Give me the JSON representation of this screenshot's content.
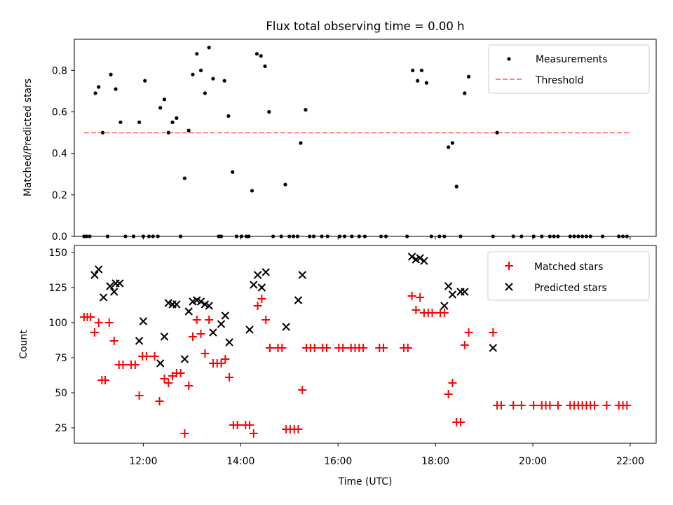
{
  "title": "Flux total observing time = 0.00 h",
  "colors": {
    "measurements": "#000000",
    "threshold": "#ff7f7f",
    "matched": "#ff0000",
    "predicted": "#000000"
  },
  "chart_data": [
    {
      "type": "scatter",
      "title": "Flux total observing time = 0.00 h",
      "xlabel": "",
      "ylabel": "Matched/Predicted stars",
      "xlim": [
        "10:35",
        "22:32"
      ],
      "ylim": [
        0,
        0.95
      ],
      "yticks": [
        0.0,
        0.2,
        0.4,
        0.6,
        0.8
      ],
      "ytick_labels": [
        "0.0",
        "0.2",
        "0.4",
        "0.6",
        "0.8"
      ],
      "xticks": [
        "12:00",
        "14:00",
        "16:00",
        "18:00",
        "20:00",
        "22:00"
      ],
      "xtick_labels_visible": false,
      "legend": {
        "position": "top-right",
        "entries": [
          "Measurements",
          "Threshold"
        ]
      },
      "grid": false,
      "series": [
        {
          "name": "Measurements",
          "kind": "scatter-dot",
          "points": [
            [
              "10:47",
              0.0
            ],
            [
              "10:50",
              0.0
            ],
            [
              "10:54",
              0.0
            ],
            [
              "11:01",
              0.69
            ],
            [
              "11:05",
              0.72
            ],
            [
              "11:10",
              0.5
            ],
            [
              "11:16",
              0.0
            ],
            [
              "11:20",
              0.78
            ],
            [
              "11:26",
              0.71
            ],
            [
              "11:32",
              0.55
            ],
            [
              "11:38",
              0.0
            ],
            [
              "11:48",
              0.0
            ],
            [
              "11:55",
              0.55
            ],
            [
              "12:00",
              0.0
            ],
            [
              "12:02",
              0.75
            ],
            [
              "12:07",
              0.0
            ],
            [
              "12:12",
              0.0
            ],
            [
              "12:18",
              0.0
            ],
            [
              "12:21",
              0.62
            ],
            [
              "12:26",
              0.66
            ],
            [
              "12:31",
              0.5
            ],
            [
              "12:36",
              0.55
            ],
            [
              "12:41",
              0.57
            ],
            [
              "12:46",
              0.0
            ],
            [
              "12:51",
              0.28
            ],
            [
              "12:56",
              0.51
            ],
            [
              "13:01",
              0.78
            ],
            [
              "13:06",
              0.88
            ],
            [
              "13:11",
              0.8
            ],
            [
              "13:16",
              0.69
            ],
            [
              "13:21",
              0.91
            ],
            [
              "13:26",
              0.76
            ],
            [
              "13:33",
              0.0
            ],
            [
              "13:36",
              0.0
            ],
            [
              "13:40",
              0.75
            ],
            [
              "13:45",
              0.58
            ],
            [
              "13:50",
              0.31
            ],
            [
              "13:55",
              0.0
            ],
            [
              "14:01",
              0.0
            ],
            [
              "14:07",
              0.0
            ],
            [
              "14:10",
              0.0
            ],
            [
              "14:14",
              0.22
            ],
            [
              "14:20",
              0.88
            ],
            [
              "14:25",
              0.87
            ],
            [
              "14:30",
              0.82
            ],
            [
              "14:35",
              0.6
            ],
            [
              "14:40",
              0.0
            ],
            [
              "14:50",
              0.0
            ],
            [
              "14:55",
              0.25
            ],
            [
              "15:00",
              0.0
            ],
            [
              "15:05",
              0.0
            ],
            [
              "15:10",
              0.0
            ],
            [
              "15:14",
              0.45
            ],
            [
              "15:20",
              0.61
            ],
            [
              "15:25",
              0.0
            ],
            [
              "15:30",
              0.0
            ],
            [
              "15:40",
              0.0
            ],
            [
              "15:47",
              0.0
            ],
            [
              "16:02",
              0.0
            ],
            [
              "16:08",
              0.0
            ],
            [
              "16:17",
              0.0
            ],
            [
              "16:26",
              0.0
            ],
            [
              "16:33",
              0.0
            ],
            [
              "16:53",
              0.0
            ],
            [
              "16:59",
              0.0
            ],
            [
              "17:25",
              0.0
            ],
            [
              "17:32",
              0.8
            ],
            [
              "17:38",
              0.75
            ],
            [
              "17:43",
              0.8
            ],
            [
              "17:49",
              0.74
            ],
            [
              "17:55",
              0.0
            ],
            [
              "18:05",
              0.0
            ],
            [
              "18:11",
              0.0
            ],
            [
              "18:16",
              0.43
            ],
            [
              "18:21",
              0.45
            ],
            [
              "18:26",
              0.24
            ],
            [
              "18:31",
              0.0
            ],
            [
              "18:36",
              0.69
            ],
            [
              "18:41",
              0.77
            ],
            [
              "19:11",
              0.0
            ],
            [
              "19:16",
              0.5
            ],
            [
              "19:36",
              0.0
            ],
            [
              "19:46",
              0.0
            ],
            [
              "20:01",
              0.0
            ],
            [
              "20:11",
              0.0
            ],
            [
              "20:21",
              0.0
            ],
            [
              "20:26",
              0.0
            ],
            [
              "20:31",
              0.0
            ],
            [
              "20:46",
              0.0
            ],
            [
              "20:51",
              0.0
            ],
            [
              "20:56",
              0.0
            ],
            [
              "21:01",
              0.0
            ],
            [
              "21:06",
              0.0
            ],
            [
              "21:11",
              0.0
            ],
            [
              "21:26",
              0.0
            ],
            [
              "21:46",
              0.0
            ],
            [
              "21:51",
              0.0
            ],
            [
              "21:56",
              0.0
            ]
          ]
        },
        {
          "name": "Threshold",
          "kind": "dashed-line",
          "points": [
            [
              "10:47",
              0.5
            ],
            [
              "22:00",
              0.5
            ]
          ]
        }
      ]
    },
    {
      "type": "scatter",
      "title": "",
      "xlabel": "Time (UTC)",
      "ylabel": "Count",
      "xlim": [
        "10:35",
        "22:32"
      ],
      "ylim": [
        14,
        155
      ],
      "yticks": [
        25,
        50,
        75,
        100,
        125,
        150
      ],
      "ytick_labels": [
        "25",
        "50",
        "75",
        "100",
        "125",
        "150"
      ],
      "xticks": [
        "12:00",
        "14:00",
        "16:00",
        "18:00",
        "20:00",
        "22:00"
      ],
      "xtick_labels": [
        "12:00",
        "14:00",
        "16:00",
        "18:00",
        "20:00",
        "22:00"
      ],
      "legend": {
        "position": "top-right",
        "entries": [
          "Matched stars",
          "Predicted stars"
        ]
      },
      "grid": false,
      "series": [
        {
          "name": "Matched stars",
          "kind": "plus",
          "points": [
            [
              "10:47",
              104
            ],
            [
              "10:51",
              104
            ],
            [
              "10:55",
              104
            ],
            [
              "11:00",
              93
            ],
            [
              "11:05",
              100
            ],
            [
              "11:09",
              59
            ],
            [
              "11:13",
              59
            ],
            [
              "11:18",
              100
            ],
            [
              "11:24",
              87
            ],
            [
              "11:30",
              70
            ],
            [
              "11:35",
              70
            ],
            [
              "11:45",
              70
            ],
            [
              "11:50",
              70
            ],
            [
              "11:55",
              48
            ],
            [
              "11:59",
              76
            ],
            [
              "12:04",
              76
            ],
            [
              "12:14",
              76
            ],
            [
              "12:20",
              44
            ],
            [
              "12:26",
              60
            ],
            [
              "12:31",
              57
            ],
            [
              "12:36",
              62
            ],
            [
              "12:41",
              64
            ],
            [
              "12:46",
              64
            ],
            [
              "12:51",
              21
            ],
            [
              "12:56",
              55
            ],
            [
              "13:01",
              90
            ],
            [
              "13:06",
              102
            ],
            [
              "13:11",
              92
            ],
            [
              "13:16",
              78
            ],
            [
              "13:21",
              102
            ],
            [
              "13:26",
              71
            ],
            [
              "13:31",
              71
            ],
            [
              "13:36",
              71
            ],
            [
              "13:41",
              74
            ],
            [
              "13:46",
              61
            ],
            [
              "13:51",
              27
            ],
            [
              "13:56",
              27
            ],
            [
              "14:06",
              27
            ],
            [
              "14:11",
              27
            ],
            [
              "14:16",
              21
            ],
            [
              "14:21",
              112
            ],
            [
              "14:26",
              117
            ],
            [
              "14:31",
              102
            ],
            [
              "14:36",
              82
            ],
            [
              "14:46",
              82
            ],
            [
              "14:51",
              82
            ],
            [
              "14:56",
              24
            ],
            [
              "15:01",
              24
            ],
            [
              "15:06",
              24
            ],
            [
              "15:11",
              24
            ],
            [
              "15:16",
              52
            ],
            [
              "15:21",
              82
            ],
            [
              "15:26",
              82
            ],
            [
              "15:31",
              82
            ],
            [
              "15:41",
              82
            ],
            [
              "15:46",
              82
            ],
            [
              "16:01",
              82
            ],
            [
              "16:06",
              82
            ],
            [
              "16:16",
              82
            ],
            [
              "16:21",
              82
            ],
            [
              "16:26",
              82
            ],
            [
              "16:31",
              82
            ],
            [
              "16:51",
              82
            ],
            [
              "16:56",
              82
            ],
            [
              "17:21",
              82
            ],
            [
              "17:26",
              82
            ],
            [
              "17:31",
              119
            ],
            [
              "17:36",
              109
            ],
            [
              "17:41",
              118
            ],
            [
              "17:46",
              107
            ],
            [
              "17:51",
              107
            ],
            [
              "17:56",
              107
            ],
            [
              "18:06",
              107
            ],
            [
              "18:11",
              107
            ],
            [
              "18:16",
              49
            ],
            [
              "18:21",
              57
            ],
            [
              "18:26",
              29
            ],
            [
              "18:31",
              29
            ],
            [
              "18:36",
              84
            ],
            [
              "18:41",
              93
            ],
            [
              "19:11",
              93
            ],
            [
              "19:16",
              41
            ],
            [
              "19:21",
              41
            ],
            [
              "19:36",
              41
            ],
            [
              "19:46",
              41
            ],
            [
              "20:01",
              41
            ],
            [
              "20:11",
              41
            ],
            [
              "20:16",
              41
            ],
            [
              "20:21",
              41
            ],
            [
              "20:31",
              41
            ],
            [
              "20:46",
              41
            ],
            [
              "20:51",
              41
            ],
            [
              "20:56",
              41
            ],
            [
              "21:01",
              41
            ],
            [
              "21:06",
              41
            ],
            [
              "21:11",
              41
            ],
            [
              "21:16",
              41
            ],
            [
              "21:31",
              41
            ],
            [
              "21:46",
              41
            ],
            [
              "21:51",
              41
            ],
            [
              "21:56",
              41
            ]
          ]
        },
        {
          "name": "Predicted stars",
          "kind": "cross",
          "points": [
            [
              "11:00",
              134
            ],
            [
              "11:05",
              138
            ],
            [
              "11:11",
              118
            ],
            [
              "11:19",
              126
            ],
            [
              "11:24",
              122
            ],
            [
              "11:26",
              128
            ],
            [
              "11:31",
              128
            ],
            [
              "11:55",
              87
            ],
            [
              "12:00",
              101
            ],
            [
              "12:21",
              71
            ],
            [
              "12:26",
              90
            ],
            [
              "12:31",
              114
            ],
            [
              "12:36",
              113
            ],
            [
              "12:41",
              113
            ],
            [
              "12:51",
              74
            ],
            [
              "12:56",
              108
            ],
            [
              "13:01",
              115
            ],
            [
              "13:06",
              116
            ],
            [
              "13:11",
              115
            ],
            [
              "13:16",
              113
            ],
            [
              "13:21",
              112
            ],
            [
              "13:26",
              93
            ],
            [
              "13:36",
              99
            ],
            [
              "13:41",
              105
            ],
            [
              "13:46",
              86
            ],
            [
              "14:11",
              95
            ],
            [
              "14:16",
              127
            ],
            [
              "14:21",
              134
            ],
            [
              "14:26",
              125
            ],
            [
              "14:31",
              136
            ],
            [
              "14:56",
              97
            ],
            [
              "15:11",
              116
            ],
            [
              "15:16",
              134
            ],
            [
              "17:31",
              147
            ],
            [
              "17:36",
              145
            ],
            [
              "17:41",
              146
            ],
            [
              "17:46",
              144
            ],
            [
              "18:11",
              112
            ],
            [
              "18:16",
              126
            ],
            [
              "18:21",
              120
            ],
            [
              "18:31",
              122
            ],
            [
              "18:36",
              122
            ],
            [
              "19:11",
              82
            ]
          ]
        }
      ]
    }
  ]
}
